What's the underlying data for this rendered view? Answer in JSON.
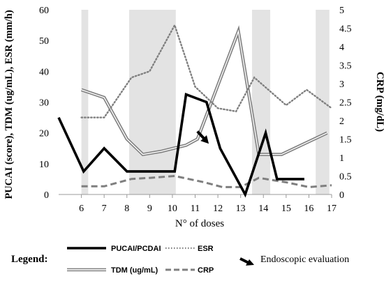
{
  "chart_data": {
    "type": "line",
    "x": [
      5,
      6,
      7,
      8,
      9,
      10,
      11,
      12,
      13,
      14,
      15,
      16,
      17
    ],
    "x_tick_labels": [
      "6",
      "7",
      "8",
      "9",
      "10",
      "11",
      "12",
      "13",
      "14",
      "15",
      "16",
      "17"
    ],
    "x_tick_values": [
      6,
      7,
      8,
      9,
      10,
      11,
      12,
      13,
      14,
      15,
      16,
      17
    ],
    "xlabel": "N° of doses",
    "ylabel_left": "PUCAI (score), TDM (ug/mL), ESR (mm/h)",
    "ylabel_right": "CRP (mg/dL)",
    "ylim_left": [
      0,
      60
    ],
    "ylim_right": [
      0,
      5
    ],
    "yticks_left": [
      0,
      10,
      20,
      30,
      40,
      50,
      60
    ],
    "yticks_right": [
      "0",
      "0.5",
      "1",
      "1.5",
      "2",
      "2.5",
      "3",
      "3.5",
      "4",
      "4.5",
      "5"
    ],
    "shaded_bands": [
      [
        6,
        6.3
      ],
      [
        8.1,
        10.15
      ],
      [
        13.5,
        14.3
      ],
      [
        16.3,
        16.9
      ]
    ],
    "series": [
      {
        "name": "PUCAI/PCDAI",
        "axis": "left",
        "style": "solid-thick",
        "color": "#000000",
        "points": [
          [
            5,
            25
          ],
          [
            6.1,
            7.5
          ],
          [
            7,
            15
          ],
          [
            8,
            7.5
          ],
          [
            9,
            7.5
          ],
          [
            10.1,
            7.5
          ],
          [
            10.6,
            32.5
          ],
          [
            11.5,
            30
          ],
          [
            12.1,
            15
          ],
          [
            13.2,
            0
          ],
          [
            14.1,
            20
          ],
          [
            14.6,
            5
          ],
          [
            15.8,
            5
          ]
        ]
      },
      {
        "name": "TDM (ug/mL)",
        "axis": "left",
        "style": "double",
        "color": "#808080",
        "points": [
          [
            6,
            34
          ],
          [
            7,
            31.5
          ],
          [
            8,
            18
          ],
          [
            8.7,
            13
          ],
          [
            9.5,
            14
          ],
          [
            10.6,
            16
          ],
          [
            11.1,
            18
          ],
          [
            12.9,
            53
          ],
          [
            13.8,
            13
          ],
          [
            14.8,
            13
          ],
          [
            16.8,
            20
          ]
        ]
      },
      {
        "name": "ESR",
        "axis": "left",
        "style": "dotted",
        "color": "#7f7f7f",
        "points": [
          [
            6,
            25
          ],
          [
            7,
            25
          ],
          [
            8.2,
            38
          ],
          [
            9,
            40
          ],
          [
            10.1,
            55
          ],
          [
            11,
            35
          ],
          [
            12,
            28
          ],
          [
            12.8,
            27
          ],
          [
            13.6,
            38
          ],
          [
            15,
            29
          ],
          [
            15.9,
            34
          ],
          [
            17,
            28
          ]
        ]
      },
      {
        "name": "CRP",
        "axis": "right",
        "style": "dashed",
        "color": "#7f7f7f",
        "points": [
          [
            6,
            0.22
          ],
          [
            7,
            0.22
          ],
          [
            8.2,
            0.42
          ],
          [
            9,
            0.45
          ],
          [
            10.1,
            0.5
          ],
          [
            11.4,
            0.33
          ],
          [
            12.2,
            0.2
          ],
          [
            13,
            0.2
          ],
          [
            13.8,
            0.45
          ],
          [
            15,
            0.33
          ],
          [
            16,
            0.2
          ],
          [
            17,
            0.25
          ]
        ]
      }
    ],
    "annotation": {
      "label": "Endoscopic evaluation",
      "type": "arrow",
      "tail": [
        11.1,
        8.2
      ],
      "head": [
        11.6,
        6.6
      ]
    },
    "legend": {
      "title": "Legend:",
      "placement": "bottom",
      "entries": [
        "PUCAI/PCDAI",
        "ESR",
        "TDM (ug/mL)",
        "CRP",
        "Endoscopic evaluation"
      ]
    },
    "grid": false
  }
}
